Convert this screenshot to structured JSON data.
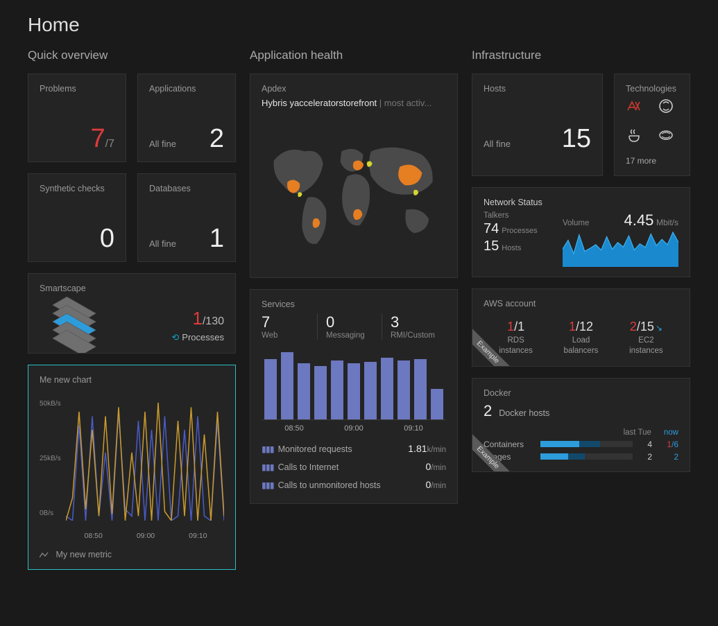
{
  "page_title": "Home",
  "sections": {
    "overview": "Quick overview",
    "app_health": "Application health",
    "infra": "Infrastructure"
  },
  "problems": {
    "label": "Problems",
    "value": "7",
    "total": "/7",
    "color": "#dc3c3c"
  },
  "applications": {
    "label": "Applications",
    "status": "All fine",
    "value": "2"
  },
  "synthetic": {
    "label": "Synthetic checks",
    "value": "0"
  },
  "databases": {
    "label": "Databases",
    "status": "All fine",
    "value": "1"
  },
  "smartscape": {
    "label": "Smartscape",
    "count": "1",
    "total": "/130",
    "sublabel": "Processes",
    "layer_colors": [
      "#6f6f6f",
      "#6f6f6f",
      "#2d9cdb",
      "#6f6f6f",
      "#6f6f6f"
    ]
  },
  "me_chart": {
    "label": "Me new chart",
    "legend": "My new metric",
    "y_ticks": [
      "50kB/s",
      "25kB/s",
      "0B/s"
    ],
    "x_ticks": [
      "08:50",
      "09:00",
      "09:10"
    ],
    "ylim": [
      0,
      55
    ],
    "colors": {
      "line_a": "#c99a2e",
      "line_b": "#4a5bc4"
    },
    "series_a": [
      0,
      10,
      48,
      5,
      40,
      2,
      46,
      3,
      50,
      0,
      30,
      2,
      48,
      0,
      52,
      4,
      0,
      44,
      2,
      50,
      0,
      38,
      0,
      48,
      2
    ],
    "series_b": [
      2,
      0,
      42,
      0,
      46,
      2,
      30,
      0,
      48,
      5,
      2,
      44,
      0,
      40,
      0,
      46,
      0,
      2,
      40,
      0,
      46,
      2,
      0,
      44,
      0
    ]
  },
  "apdex": {
    "label": "Apdex",
    "app": "Hybris yacceleratorstorefront",
    "sub": "most activ...",
    "map_colors": {
      "land": "#4a4a4a",
      "hot": "#e67e22",
      "warm": "#d4d433"
    }
  },
  "services": {
    "label": "Services",
    "stats": [
      {
        "n": "7",
        "l": "Web"
      },
      {
        "n": "0",
        "l": "Messaging"
      },
      {
        "n": "3",
        "l": "RMI/Custom"
      }
    ],
    "bar_color": "#6c78bf",
    "bars": [
      88,
      98,
      82,
      78,
      86,
      82,
      84,
      90,
      86,
      88,
      44
    ],
    "x_ticks": [
      "08:50",
      "09:00",
      "09:10"
    ],
    "rows": [
      {
        "label": "Monitored requests",
        "value": "1.81",
        "unit": "k/min"
      },
      {
        "label": "Calls to Internet",
        "value": "0",
        "unit": "/min"
      },
      {
        "label": "Calls to unmonitored hosts",
        "value": "0",
        "unit": "/min"
      }
    ]
  },
  "hosts": {
    "label": "Hosts",
    "status": "All fine",
    "value": "15"
  },
  "technologies": {
    "label": "Technologies",
    "more": "17 more"
  },
  "network": {
    "label": "Network Status",
    "talkers_label": "Talkers",
    "processes_n": "74",
    "processes_l": "Processes",
    "hosts_n": "15",
    "hosts_l": "Hosts",
    "volume_label": "Volume",
    "volume_value": "4.45",
    "volume_unit": "Mbit/s",
    "spark_color": "#1a8fd8",
    "spark": [
      40,
      60,
      30,
      72,
      35,
      42,
      50,
      38,
      68,
      40,
      55,
      45,
      70,
      38,
      52,
      44,
      74,
      48,
      62,
      50,
      78,
      55
    ]
  },
  "aws": {
    "label": "AWS account",
    "ribbon": "Example",
    "items": [
      {
        "n1": "1",
        "n2": "/1",
        "label": "RDS\ninstances",
        "arrow": false
      },
      {
        "n1": "1",
        "n2": "/12",
        "label": "Load\nbalancers",
        "arrow": false
      },
      {
        "n1": "2",
        "n2": "/15",
        "label": "EC2\ninstances",
        "arrow": true
      }
    ]
  },
  "docker": {
    "label": "Docker",
    "ribbon": "Example",
    "hosts_n": "2",
    "hosts_l": "Docker hosts",
    "columns": {
      "c1": "last Tue",
      "c2": "now"
    },
    "rows": [
      {
        "label": "Containers",
        "bar1_w": 65,
        "bar2_w": 42,
        "v1": "4",
        "v2_red": "1",
        "v2": "/6"
      },
      {
        "label": "Images",
        "bar1_w": 48,
        "bar2_w": 30,
        "v1": "2",
        "v2_red": "",
        "v2": "2"
      }
    ]
  }
}
